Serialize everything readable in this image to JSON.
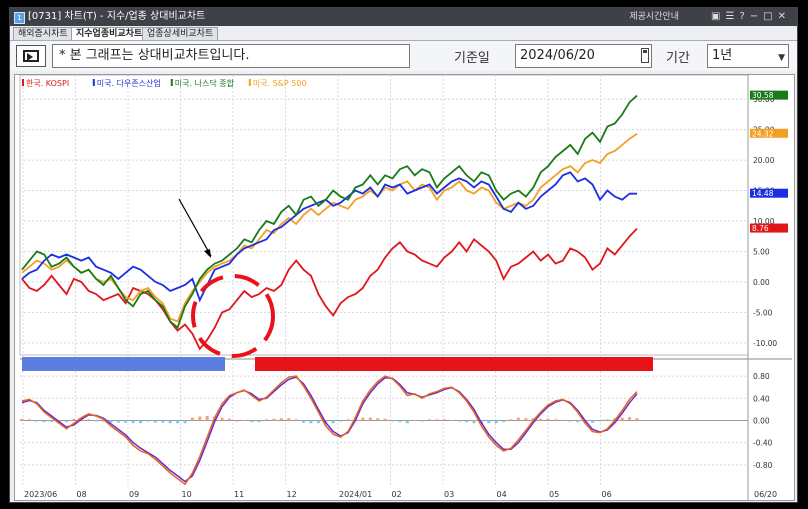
{
  "window": {
    "title": "[0731] 차트(T) - 지수/업종 상대비교차트",
    "links": "제공시간안내",
    "icon_label": "1"
  },
  "tabs": [
    {
      "label": "해외증시차트",
      "active": false
    },
    {
      "label": "지수업종비교차트",
      "active": true
    },
    {
      "label": "업종상세비교차트",
      "active": false
    }
  ],
  "toolbar": {
    "message": "* 본 그래프는 상대비교차트입니다.",
    "date_label": "기준일",
    "date_value": "2024/06/20",
    "period_label": "기간",
    "period_value": "1년"
  },
  "colors": {
    "kospi": "#e0161b",
    "dow": "#1c2fe0",
    "nasdaq": "#1a7a1a",
    "sp500": "#f2a023",
    "osc_line1": "#e2661c",
    "osc_line2": "#6a2ad4",
    "bar_blue": "#5b7ee0",
    "bar_red": "#e8121a"
  },
  "chart_data": {
    "type": "line",
    "x_ticks": [
      "2023/06",
      "08",
      "09",
      "10",
      "11",
      "12",
      "2024/01",
      "02",
      "03",
      "04",
      "05",
      "06"
    ],
    "x_end_label": "06/20",
    "y_ticks": [
      "-10.00",
      "-5.00",
      "0.00",
      "5.00",
      "10.00",
      "15.00",
      "20.00",
      "25.00",
      "30.00"
    ],
    "ylim": [
      -12,
      32
    ],
    "legend": [
      "한국. KOSPI",
      "미국. 다우존스산업",
      "미국. 나스닥 종합",
      "미국. S&P 500"
    ],
    "last_value_labels": {
      "nasdaq": "30.58",
      "sp500": "24.32",
      "dow": "14.48",
      "kospi": "8.76"
    },
    "series": [
      {
        "name": "한국. KOSPI",
        "key": "kospi",
        "values": [
          0.5,
          -1.0,
          -1.5,
          -0.5,
          1.0,
          -0.5,
          -2.0,
          0.5,
          0.0,
          -1.5,
          -2.0,
          -3.0,
          -2.5,
          -2.0,
          -3.5,
          -1.0,
          -1.5,
          -2.0,
          -3.0,
          -4.5,
          -6.5,
          -8.0,
          -7.0,
          -8.5,
          -11.0,
          -9.5,
          -7.5,
          -5.0,
          -4.5,
          -3.0,
          -1.5,
          -2.5,
          -2.0,
          -1.0,
          -1.5,
          -0.5,
          2.0,
          3.5,
          2.0,
          1.0,
          -2.0,
          -4.0,
          -5.5,
          -3.5,
          -2.5,
          -2.0,
          -1.0,
          1.0,
          2.0,
          4.0,
          5.5,
          6.5,
          5.0,
          4.5,
          3.5,
          3.0,
          2.5,
          4.0,
          5.0,
          6.5,
          5.0,
          7.0,
          6.0,
          5.0,
          3.5,
          0.5,
          2.5,
          3.0,
          4.0,
          5.0,
          3.5,
          4.5,
          3.0,
          3.5,
          5.5,
          5.0,
          4.0,
          2.0,
          3.0,
          5.5,
          4.5,
          6.0,
          7.5,
          8.76
        ]
      },
      {
        "name": "미국. 다우존스산업",
        "key": "dow",
        "values": [
          0.5,
          1.5,
          2.0,
          3.5,
          4.5,
          4.0,
          4.5,
          4.0,
          3.5,
          4.0,
          2.5,
          2.0,
          1.5,
          0.5,
          1.5,
          2.5,
          2.0,
          1.0,
          0.0,
          -0.5,
          -1.5,
          -1.0,
          -0.5,
          0.5,
          -3.0,
          -0.5,
          2.0,
          2.5,
          3.0,
          4.5,
          5.5,
          6.0,
          6.5,
          7.0,
          8.5,
          9.0,
          10.0,
          11.0,
          12.0,
          12.5,
          13.0,
          13.5,
          12.5,
          13.0,
          14.0,
          15.0,
          14.5,
          15.5,
          14.0,
          16.0,
          15.5,
          16.0,
          14.5,
          15.0,
          15.5,
          16.0,
          14.5,
          15.5,
          16.5,
          17.0,
          16.5,
          15.5,
          16.5,
          16.0,
          14.0,
          12.0,
          11.5,
          13.0,
          12.0,
          12.5,
          14.0,
          15.0,
          16.0,
          17.5,
          18.0,
          16.5,
          17.0,
          16.0,
          13.5,
          15.0,
          14.0,
          13.5,
          14.5,
          14.48
        ]
      },
      {
        "name": "미국. 나스닥 종합",
        "key": "nasdaq",
        "values": [
          2.0,
          3.5,
          5.0,
          4.5,
          2.5,
          3.0,
          4.0,
          2.5,
          1.5,
          2.0,
          0.5,
          -0.5,
          1.0,
          -1.0,
          -3.0,
          -4.0,
          -2.0,
          -1.5,
          -3.0,
          -4.0,
          -6.5,
          -7.5,
          -4.0,
          -2.0,
          0.5,
          2.0,
          3.0,
          3.5,
          4.5,
          5.5,
          7.0,
          6.5,
          8.5,
          10.0,
          9.5,
          11.5,
          12.5,
          11.0,
          13.5,
          14.0,
          12.5,
          13.5,
          15.0,
          14.0,
          13.5,
          15.5,
          16.0,
          17.5,
          16.0,
          17.5,
          17.0,
          18.5,
          19.0,
          17.5,
          18.5,
          18.0,
          15.5,
          17.0,
          18.0,
          19.0,
          17.5,
          16.5,
          18.0,
          17.5,
          15.0,
          13.5,
          14.5,
          15.0,
          14.0,
          15.5,
          18.0,
          19.0,
          20.5,
          21.5,
          22.5,
          21.0,
          23.5,
          24.5,
          23.0,
          25.5,
          26.0,
          27.5,
          29.5,
          30.58
        ]
      },
      {
        "name": "미국. S&P 500",
        "key": "sp500",
        "values": [
          1.5,
          2.5,
          3.5,
          3.0,
          2.0,
          2.5,
          3.5,
          2.5,
          1.5,
          2.0,
          0.5,
          0.0,
          0.5,
          -1.0,
          -2.5,
          -3.0,
          -1.5,
          -1.0,
          -2.5,
          -3.5,
          -6.0,
          -6.5,
          -3.5,
          -1.5,
          0.0,
          1.5,
          2.5,
          3.0,
          3.5,
          4.5,
          6.0,
          5.5,
          7.0,
          8.5,
          8.0,
          9.5,
          10.5,
          9.5,
          11.0,
          12.0,
          11.0,
          12.0,
          13.0,
          12.5,
          12.0,
          13.5,
          14.0,
          15.0,
          14.0,
          15.5,
          15.0,
          16.0,
          16.5,
          15.0,
          16.0,
          15.5,
          13.5,
          15.0,
          15.5,
          16.5,
          15.0,
          14.5,
          15.5,
          15.0,
          13.0,
          12.0,
          12.5,
          13.0,
          12.5,
          13.5,
          15.5,
          16.5,
          17.5,
          18.5,
          19.0,
          18.0,
          19.5,
          20.0,
          19.5,
          21.0,
          21.5,
          22.5,
          23.5,
          24.32
        ]
      }
    ],
    "oscillator": {
      "y_ticks": [
        "0.80",
        "0.40",
        "0.00",
        "-0.40",
        "-0.80"
      ],
      "ylim": [
        -1.2,
        1.0
      ],
      "line1": [
        0.35,
        0.38,
        0.3,
        0.15,
        0.05,
        -0.05,
        -0.15,
        -0.05,
        0.05,
        0.12,
        0.08,
        0.02,
        -0.1,
        -0.2,
        -0.3,
        -0.45,
        -0.55,
        -0.6,
        -0.7,
        -0.82,
        -0.95,
        -1.05,
        -1.15,
        -0.95,
        -0.65,
        -0.3,
        0.05,
        0.3,
        0.45,
        0.5,
        0.55,
        0.45,
        0.35,
        0.42,
        0.55,
        0.68,
        0.78,
        0.8,
        0.62,
        0.4,
        0.15,
        -0.1,
        -0.25,
        -0.3,
        -0.2,
        0.05,
        0.35,
        0.55,
        0.7,
        0.8,
        0.75,
        0.62,
        0.45,
        0.48,
        0.4,
        0.48,
        0.52,
        0.58,
        0.6,
        0.5,
        0.35,
        0.15,
        -0.1,
        -0.3,
        -0.45,
        -0.55,
        -0.5,
        -0.35,
        -0.18,
        0.0,
        0.15,
        0.28,
        0.35,
        0.38,
        0.3,
        0.15,
        -0.05,
        -0.2,
        -0.22,
        -0.15,
        0.0,
        0.18,
        0.38,
        0.52
      ],
      "line2": [
        0.32,
        0.36,
        0.32,
        0.18,
        0.08,
        -0.02,
        -0.12,
        -0.08,
        0.02,
        0.1,
        0.09,
        0.04,
        -0.06,
        -0.16,
        -0.26,
        -0.4,
        -0.5,
        -0.58,
        -0.66,
        -0.78,
        -0.9,
        -1.0,
        -1.1,
        -1.0,
        -0.72,
        -0.38,
        -0.02,
        0.25,
        0.42,
        0.5,
        0.54,
        0.48,
        0.38,
        0.4,
        0.52,
        0.64,
        0.74,
        0.78,
        0.66,
        0.45,
        0.2,
        -0.04,
        -0.2,
        -0.28,
        -0.22,
        0.0,
        0.3,
        0.5,
        0.66,
        0.77,
        0.76,
        0.65,
        0.5,
        0.47,
        0.42,
        0.46,
        0.5,
        0.56,
        0.59,
        0.52,
        0.38,
        0.2,
        -0.04,
        -0.25,
        -0.4,
        -0.52,
        -0.52,
        -0.4,
        -0.22,
        -0.04,
        0.12,
        0.25,
        0.33,
        0.37,
        0.32,
        0.18,
        0.0,
        -0.16,
        -0.21,
        -0.17,
        -0.04,
        0.13,
        0.32,
        0.48
      ],
      "histogram": [
        0.03,
        0.02,
        -0.02,
        -0.03,
        -0.03,
        -0.03,
        -0.03,
        0.03,
        0.03,
        0.02,
        -0.01,
        -0.02,
        -0.04,
        -0.04,
        -0.04,
        -0.05,
        -0.05,
        -0.02,
        -0.04,
        -0.04,
        -0.05,
        -0.05,
        -0.05,
        0.05,
        0.07,
        0.08,
        0.07,
        0.05,
        0.03,
        0.0,
        0.01,
        -0.03,
        -0.03,
        0.02,
        0.03,
        0.04,
        0.04,
        0.02,
        -0.04,
        -0.05,
        -0.05,
        -0.06,
        -0.05,
        -0.02,
        0.02,
        0.05,
        0.05,
        0.05,
        0.04,
        0.03,
        -0.01,
        -0.03,
        -0.05,
        0.01,
        -0.02,
        0.02,
        0.02,
        0.02,
        0.01,
        -0.02,
        -0.03,
        -0.05,
        -0.06,
        -0.05,
        -0.05,
        -0.03,
        0.02,
        0.05,
        0.04,
        0.04,
        0.03,
        0.03,
        0.02,
        0.01,
        -0.02,
        -0.03,
        -0.05,
        -0.04,
        -0.01,
        0.02,
        0.04,
        0.05,
        0.06,
        0.04
      ]
    }
  }
}
